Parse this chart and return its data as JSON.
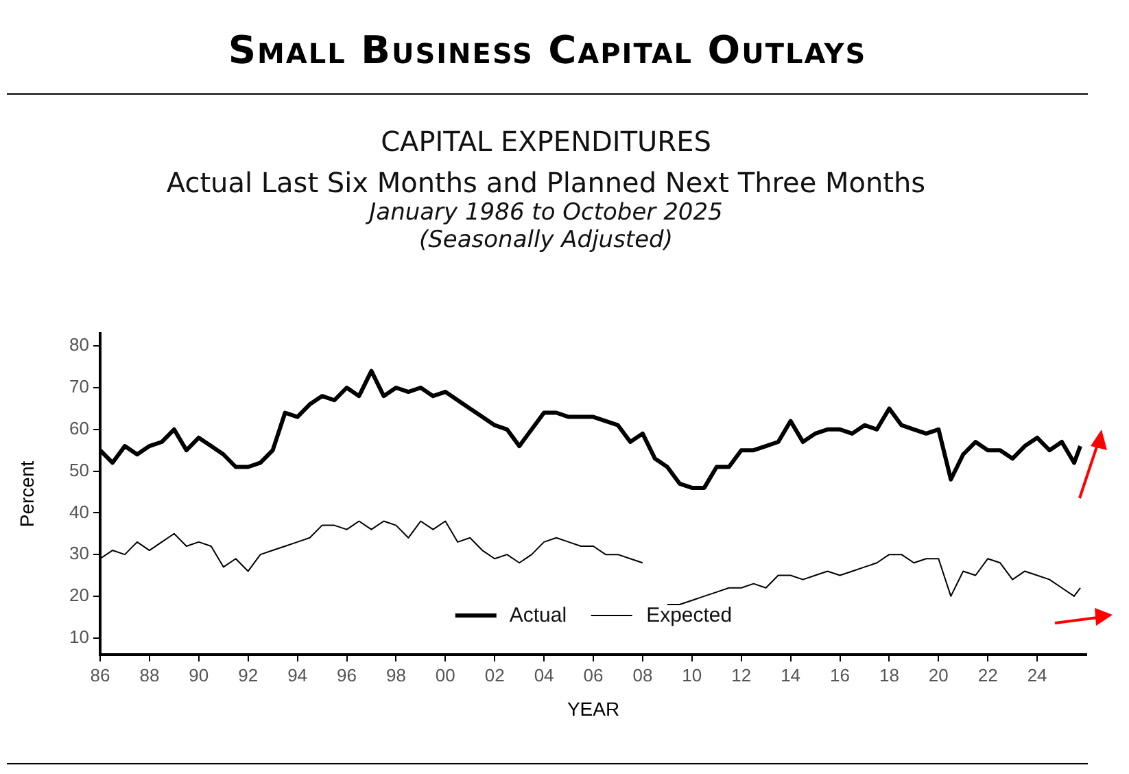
{
  "chart_data": {
    "type": "line",
    "title": "Small Business Capital Outlays",
    "subtitle": "CAPITAL EXPENDITURES\nActual Last Six Months and Planned Next Three Months\nJanuary 1986 to October 2025\n(Seasonally Adjusted)",
    "xlabel": "YEAR",
    "ylabel": "Percent",
    "x": [
      1986,
      1986.5,
      1987,
      1987.5,
      1988,
      1988.5,
      1989,
      1989.5,
      1990,
      1990.5,
      1991,
      1991.5,
      1992,
      1992.5,
      1993,
      1993.5,
      1994,
      1994.5,
      1995,
      1995.5,
      1996,
      1996.5,
      1997,
      1997.5,
      1998,
      1998.5,
      1999,
      1999.5,
      2000,
      2000.5,
      2001,
      2001.5,
      2002,
      2002.5,
      2003,
      2003.5,
      2004,
      2004.5,
      2005,
      2005.5,
      2006,
      2006.5,
      2007,
      2007.5,
      2008,
      2008.5,
      2009,
      2009.5,
      2010,
      2010.5,
      2011,
      2011.5,
      2012,
      2012.5,
      2013,
      2013.5,
      2014,
      2014.5,
      2015,
      2015.5,
      2016,
      2016.5,
      2017,
      2017.5,
      2018,
      2018.5,
      2019,
      2019.5,
      2020,
      2020.5,
      2021,
      2021.5,
      2022,
      2022.5,
      2023,
      2023.5,
      2024,
      2024.5,
      2025,
      2025.5,
      2025.75
    ],
    "series": [
      {
        "name": "Actual",
        "color": "#000000",
        "values": [
          55,
          52,
          56,
          54,
          56,
          57,
          60,
          55,
          58,
          56,
          54,
          51,
          51,
          52,
          55,
          64,
          63,
          66,
          68,
          67,
          70,
          68,
          74,
          68,
          70,
          69,
          70,
          68,
          69,
          67,
          65,
          63,
          61,
          60,
          56,
          60,
          64,
          64,
          63,
          63,
          63,
          62,
          61,
          57,
          59,
          53,
          51,
          47,
          46,
          46,
          51,
          51,
          55,
          55,
          56,
          57,
          62,
          57,
          59,
          60,
          60,
          59,
          61,
          60,
          65,
          61,
          60,
          59,
          60,
          48,
          54,
          57,
          55,
          55,
          53,
          56,
          58,
          55,
          57,
          52,
          56
        ]
      },
      {
        "name": "Expected",
        "color": "#000000",
        "values": [
          29,
          31,
          30,
          33,
          31,
          33,
          35,
          32,
          33,
          32,
          27,
          29,
          26,
          30,
          31,
          32,
          33,
          34,
          37,
          37,
          36,
          38,
          36,
          38,
          37,
          34,
          38,
          36,
          38,
          33,
          34,
          31,
          29,
          30,
          28,
          30,
          33,
          34,
          33,
          32,
          32,
          30,
          30,
          29,
          28,
          null,
          18,
          18,
          19,
          20,
          21,
          22,
          22,
          23,
          22,
          25,
          25,
          24,
          25,
          26,
          25,
          26,
          27,
          28,
          30,
          30,
          28,
          29,
          29,
          20,
          26,
          25,
          29,
          28,
          24,
          26,
          25,
          24,
          22,
          20,
          22
        ]
      }
    ],
    "xlim": [
      1986,
      2026
    ],
    "ylim": [
      6,
      83
    ],
    "xticks": [
      {
        "value": 1986,
        "label": "86"
      },
      {
        "value": 1988,
        "label": "88"
      },
      {
        "value": 1990,
        "label": "90"
      },
      {
        "value": 1992,
        "label": "92"
      },
      {
        "value": 1994,
        "label": "94"
      },
      {
        "value": 1996,
        "label": "96"
      },
      {
        "value": 1998,
        "label": "98"
      },
      {
        "value": 2000,
        "label": "00"
      },
      {
        "value": 2002,
        "label": "02"
      },
      {
        "value": 2004,
        "label": "04"
      },
      {
        "value": 2006,
        "label": "06"
      },
      {
        "value": 2008,
        "label": "08"
      },
      {
        "value": 2010,
        "label": "10"
      },
      {
        "value": 2012,
        "label": "12"
      },
      {
        "value": 2014,
        "label": "14"
      },
      {
        "value": 2016,
        "label": "16"
      },
      {
        "value": 2018,
        "label": "18"
      },
      {
        "value": 2020,
        "label": "20"
      },
      {
        "value": 2022,
        "label": "22"
      },
      {
        "value": 2024,
        "label": "24"
      }
    ],
    "yticks": [
      10,
      20,
      30,
      40,
      50,
      60,
      70,
      80
    ],
    "legend": "bottom",
    "grid": false,
    "marker": "none",
    "line_style": "solid"
  }
}
